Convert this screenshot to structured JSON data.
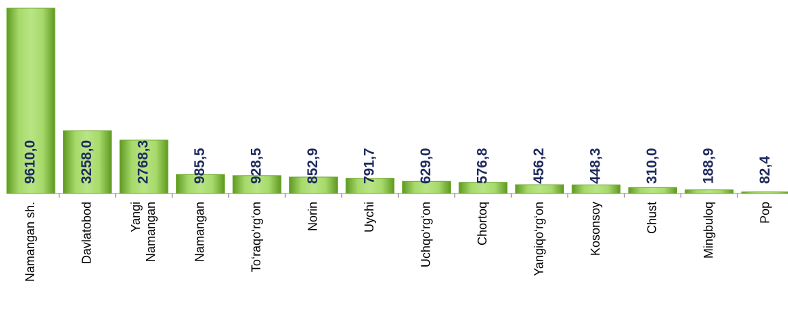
{
  "chart_data": {
    "type": "bar",
    "categories": [
      "Namangan sh.",
      "Davlatobod",
      "Yangi\nNamangan",
      "Namangan",
      "To‘raqo‘rg‘on",
      "Norin",
      "Uychi",
      "Uchqo‘rg‘on",
      "Chortoq",
      "Yangiqo‘rg‘on",
      "Kosonsoy",
      "Chust",
      "Mingbuloq",
      "Pop"
    ],
    "values": [
      9610.0,
      3258.0,
      2768.3,
      985.5,
      928.5,
      852.9,
      791.7,
      629.0,
      576.8,
      456.2,
      448.3,
      310.0,
      188.9,
      82.4
    ],
    "value_labels": [
      "9610,0",
      "3258,0",
      "2768,3",
      "985,5",
      "928,5",
      "852,9",
      "791,7",
      "629,0",
      "576,8",
      "456,2",
      "448,3",
      "310,0",
      "188,9",
      "82,4"
    ],
    "color": "#92d050"
  }
}
